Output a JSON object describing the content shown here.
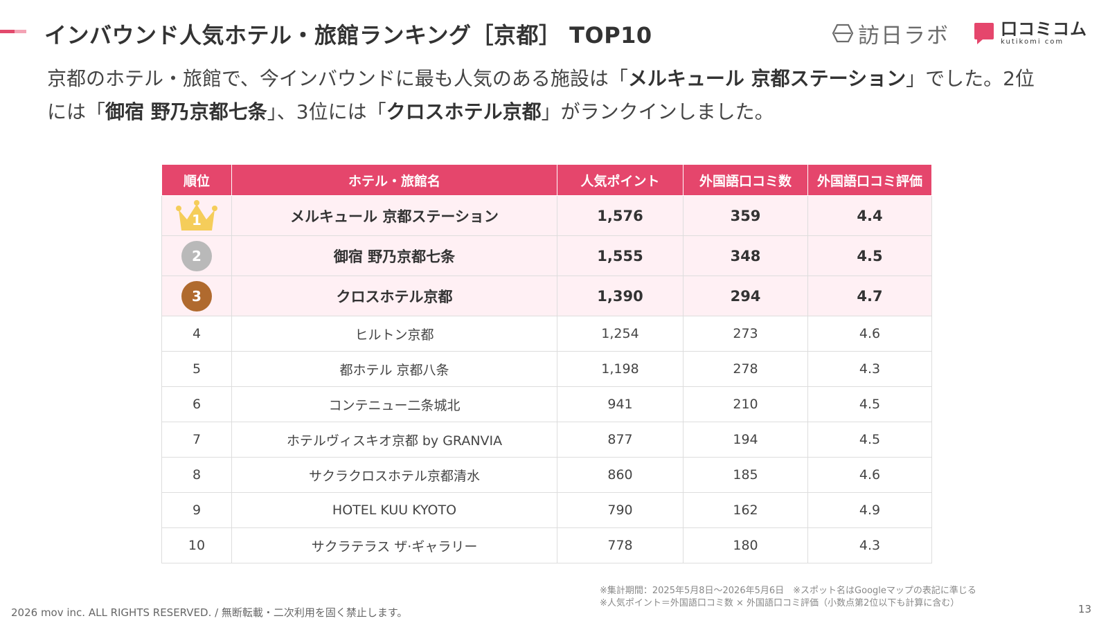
{
  "header": {
    "title": "インバウンド人気ホテル・旅館ランキング［京都］ TOP10",
    "logo_houjitsu": "訪日ラボ",
    "logo_kutikomi": "口コミコム",
    "logo_kutikomi_sub": "kutikomi com"
  },
  "intro": {
    "p1": "京都のホテル・旅館で、今インバウンドに最も人気のある施設は「",
    "hotel1": "メルキュール 京都ステーション",
    "p2": "」でした。2位には「",
    "hotel2": "御宿 野乃京都七条",
    "p3": "」、3位には「",
    "hotel3": "クロスホテル京都",
    "p4": "」がランクインしました。"
  },
  "table": {
    "headers": [
      "順位",
      "ホテル・旅館名",
      "人気ポイント",
      "外国語口コミ数",
      "外国語口コミ評価"
    ],
    "rows": [
      {
        "rank": "1",
        "name": "メルキュール 京都ステーション",
        "points": "1,576",
        "reviews": "359",
        "rating": "4.4"
      },
      {
        "rank": "2",
        "name": "御宿 野乃京都七条",
        "points": "1,555",
        "reviews": "348",
        "rating": "4.5"
      },
      {
        "rank": "3",
        "name": "クロスホテル京都",
        "points": "1,390",
        "reviews": "294",
        "rating": "4.7"
      },
      {
        "rank": "4",
        "name": "ヒルトン京都",
        "points": "1,254",
        "reviews": "273",
        "rating": "4.6"
      },
      {
        "rank": "5",
        "name": "都ホテル 京都八条",
        "points": "1,198",
        "reviews": "278",
        "rating": "4.3"
      },
      {
        "rank": "6",
        "name": "コンテニュー二条城北",
        "points": "941",
        "reviews": "210",
        "rating": "4.5"
      },
      {
        "rank": "7",
        "name": "ホテルヴィスキオ京都 by GRANVIA",
        "points": "877",
        "reviews": "194",
        "rating": "4.5"
      },
      {
        "rank": "8",
        "name": "サクラクロスホテル京都清水",
        "points": "860",
        "reviews": "185",
        "rating": "4.6"
      },
      {
        "rank": "9",
        "name": "HOTEL KUU KYOTO",
        "points": "790",
        "reviews": "162",
        "rating": "4.9"
      },
      {
        "rank": "10",
        "name": "サクラテラス ザ·ギャラリー",
        "points": "778",
        "reviews": "180",
        "rating": "4.3"
      }
    ]
  },
  "notes": {
    "line1": "※集計期間：2025年5月8日〜2026年5月6日　※スポット名はGoogleマップの表記に準じる",
    "line2": "※人気ポイント＝外国語口コミ数 × 外国語口コミ評価（小数点第2位以下も計算に含む）"
  },
  "footer": {
    "copyright": "2026 mov inc. ALL RIGHTS RESERVED. / 無断転載・二次利用を固く禁止します。",
    "page": "13"
  },
  "colors": {
    "accent": "#e5466c",
    "top_row_bg": "#fff0f4",
    "gold": "#f5cd5a",
    "silver": "#b9b9b9",
    "bronze": "#b06a2e"
  },
  "icons": [
    "houjitsu-labo-logo-icon",
    "kutikomi-com-logo-icon",
    "crown-icon",
    "silver-medal-icon",
    "bronze-medal-icon"
  ]
}
